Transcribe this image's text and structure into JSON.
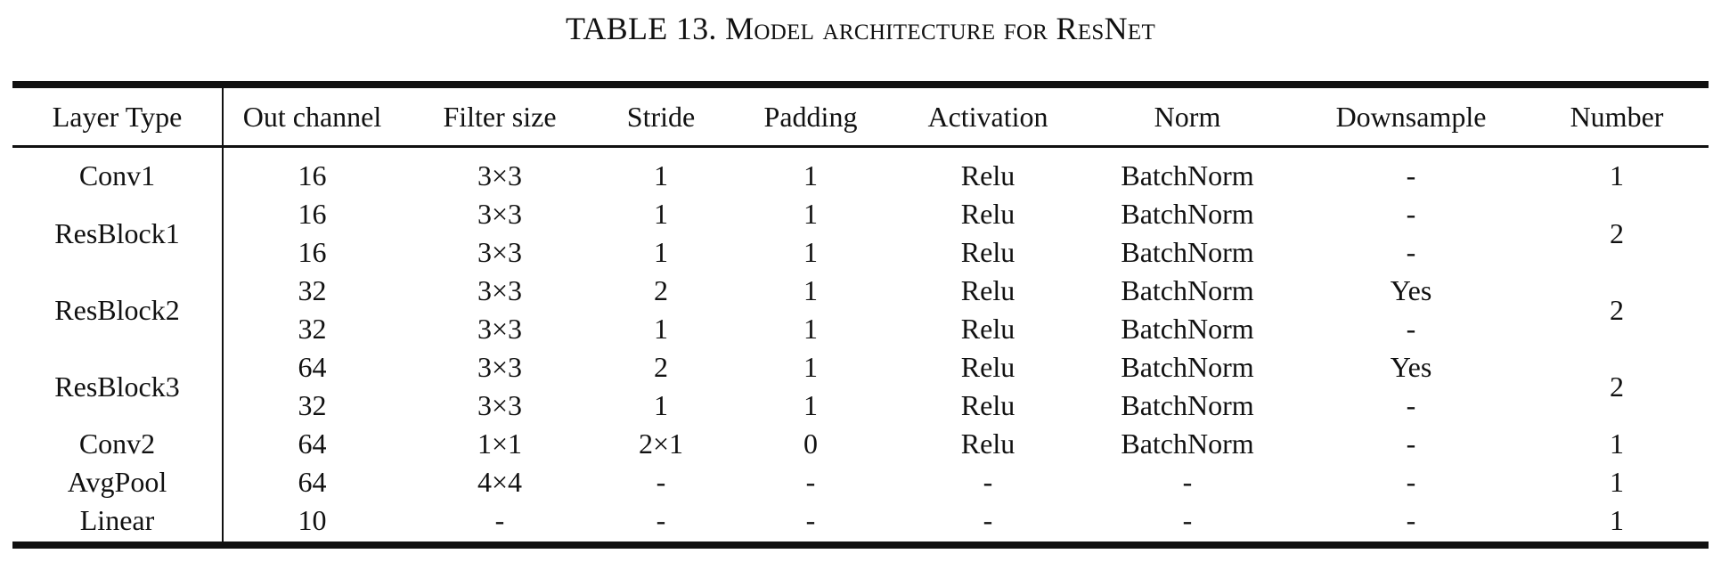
{
  "caption": {
    "label": "TABLE 13.",
    "title": "Model architecture for ResNet"
  },
  "table": {
    "headers": [
      "Layer Type",
      "Out channel",
      "Filter size",
      "Stride",
      "Padding",
      "Activation",
      "Norm",
      "Downsample",
      "Number"
    ],
    "rows": [
      {
        "layer": "Conv1",
        "rows": [
          [
            "16",
            "3×3",
            "1",
            "1",
            "Relu",
            "BatchNorm",
            "-"
          ]
        ],
        "number": "1"
      },
      {
        "layer": "ResBlock1",
        "rows": [
          [
            "16",
            "3×3",
            "1",
            "1",
            "Relu",
            "BatchNorm",
            "-"
          ],
          [
            "16",
            "3×3",
            "1",
            "1",
            "Relu",
            "BatchNorm",
            "-"
          ]
        ],
        "number": "2"
      },
      {
        "layer": "ResBlock2",
        "rows": [
          [
            "32",
            "3×3",
            "2",
            "1",
            "Relu",
            "BatchNorm",
            "Yes"
          ],
          [
            "32",
            "3×3",
            "1",
            "1",
            "Relu",
            "BatchNorm",
            "-"
          ]
        ],
        "number": "2"
      },
      {
        "layer": "ResBlock3",
        "rows": [
          [
            "64",
            "3×3",
            "2",
            "1",
            "Relu",
            "BatchNorm",
            "Yes"
          ],
          [
            "32",
            "3×3",
            "1",
            "1",
            "Relu",
            "BatchNorm",
            "-"
          ]
        ],
        "number": "2"
      },
      {
        "layer": "Conv2",
        "rows": [
          [
            "64",
            "1×1",
            "2×1",
            "0",
            "Relu",
            "BatchNorm",
            "-"
          ]
        ],
        "number": "1"
      },
      {
        "layer": "AvgPool",
        "rows": [
          [
            "64",
            "4×4",
            "-",
            "-",
            "-",
            "-",
            "-"
          ]
        ],
        "number": "1"
      },
      {
        "layer": "Linear",
        "rows": [
          [
            "10",
            "-",
            "-",
            "-",
            "-",
            "-",
            "-"
          ]
        ],
        "number": "1"
      }
    ]
  }
}
